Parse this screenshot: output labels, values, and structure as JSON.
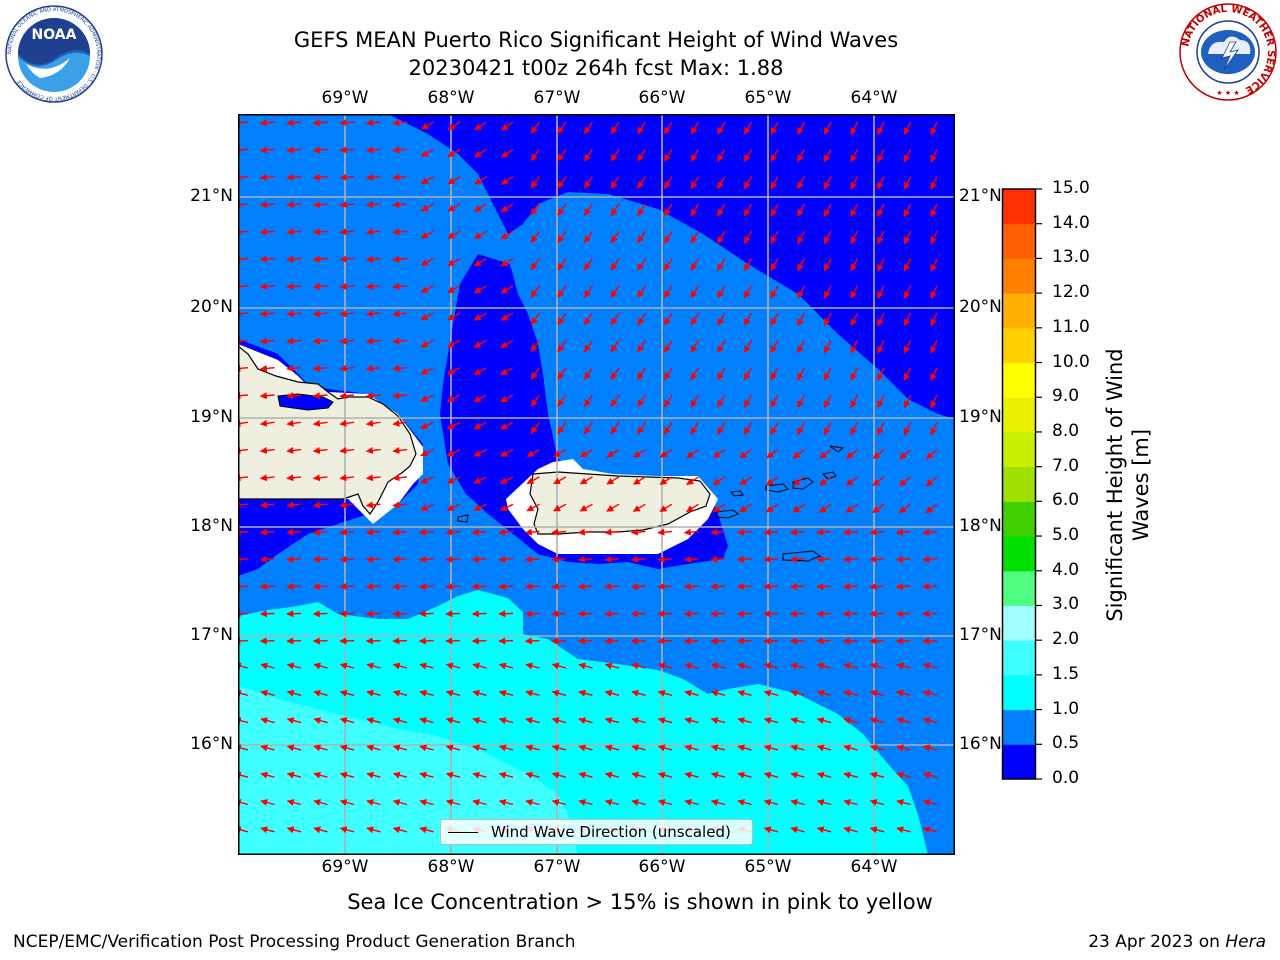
{
  "header": {
    "title_line1": "GEFS MEAN Puerto Rico Significant Height of Wind Waves",
    "title_line2": "20230421 t00z 264h fcst   Max: 1.88"
  },
  "logos": {
    "left": {
      "name": "noaa-logo",
      "text": "NOAA",
      "ring_text": "NATIONAL OCEANIC AND ATMOSPHERIC ADMINISTRATION · U.S. DEPARTMENT OF COMMERCE"
    },
    "right": {
      "name": "nws-logo",
      "ring_text": "NATIONAL WEATHER SERVICE"
    }
  },
  "map": {
    "lon_labels": [
      "69°W",
      "68°W",
      "67°W",
      "66°W",
      "65°W",
      "64°W"
    ],
    "lat_labels": [
      "21°N",
      "20°N",
      "19°N",
      "18°N",
      "17°N",
      "16°N"
    ],
    "legend_label": "Wind Wave Direction (unscaled)",
    "vector_color": "#ff0000",
    "land_color": "#efefdf",
    "projection_extent": {
      "lon_min": -70.0,
      "lon_max": -63.25,
      "lat_min": 15.0,
      "lat_max": 21.75
    }
  },
  "colorbar": {
    "title": "Significant Height of Wind Waves [m]",
    "title_line1": "Significant Height of Wind",
    "title_line2": "Waves [m]",
    "tick_labels": [
      "0.0",
      "0.5",
      "1.0",
      "1.5",
      "2.0",
      "3.0",
      "4.0",
      "5.0",
      "6.0",
      "7.0",
      "8.0",
      "9.0",
      "10.0",
      "11.0",
      "12.0",
      "13.0",
      "14.0",
      "15.0"
    ],
    "colors": [
      "#0000ff",
      "#0080ff",
      "#00ffff",
      "#40ffff",
      "#a0ffff",
      "#50ff80",
      "#00e000",
      "#40d000",
      "#a0e000",
      "#c8f000",
      "#e8f000",
      "#ffff00",
      "#ffd000",
      "#ffb000",
      "#ff8000",
      "#ff6000",
      "#ff3000",
      "#ff0000"
    ]
  },
  "field_colors": {
    "0.0-0.5": "#0000ff",
    "0.5-1.0": "#0080ff",
    "1.0-1.5": "#00ffff",
    "1.5-2.0": "#40ffff"
  },
  "note": "Sea Ice Concentration > 15% is shown in pink to yellow",
  "footer": {
    "left": "NCEP/EMC/Verification Post Processing Product Generation Branch",
    "date": "23 Apr 2023 on ",
    "system": "Hera"
  }
}
